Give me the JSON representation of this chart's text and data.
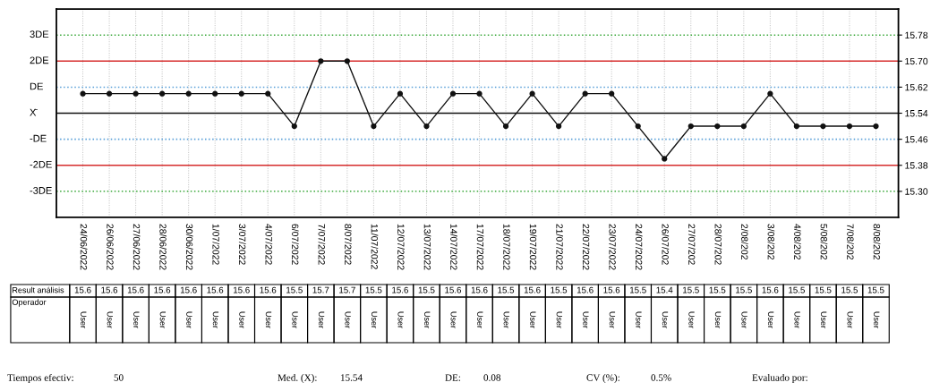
{
  "chart_data": {
    "type": "line",
    "categories": [
      "24/06/2022",
      "26/06/2022",
      "27/06/2022",
      "28/06/2022",
      "30/06/2022",
      "1/07/2022",
      "3/07/2022",
      "4/07/2022",
      "6/07/2022",
      "7/07/2022",
      "8/07/2022",
      "11/07/2022",
      "12/07/2022",
      "13/07/2022",
      "14/07/2022",
      "17/07/2022",
      "18/07/2022",
      "19/07/2022",
      "21/07/2022",
      "22/07/2022",
      "23/07/2022",
      "24/07/2022",
      "26/07/202",
      "27/07/202",
      "28/07/202",
      "2/08/202",
      "3/08/202",
      "4/08/202",
      "5/08/202",
      "7/08/202",
      "8/08/202"
    ],
    "series": [
      {
        "color": "#111111",
        "values": [
          15.6,
          15.6,
          15.6,
          15.6,
          15.6,
          15.6,
          15.6,
          15.6,
          15.5,
          15.7,
          15.7,
          15.5,
          15.6,
          15.5,
          15.6,
          15.6,
          15.5,
          15.6,
          15.5,
          15.6,
          15.6,
          15.5,
          15.4,
          15.5,
          15.5,
          15.5,
          15.6,
          15.5,
          15.5,
          15.5,
          15.5
        ]
      }
    ],
    "marker": "circle",
    "line_style": "solid",
    "data_labels": true,
    "grid": "x",
    "ylim": [
      15.22,
      15.86
    ],
    "yticks": [
      {
        "value": 15.78,
        "label": "15.78"
      },
      {
        "value": 15.7,
        "label": "15.70"
      },
      {
        "value": 15.62,
        "label": "15.62"
      },
      {
        "value": 15.54,
        "label": "15.54"
      },
      {
        "value": 15.46,
        "label": "15.46"
      },
      {
        "value": 15.38,
        "label": "15.38"
      },
      {
        "value": 15.3,
        "label": "15.30"
      }
    ],
    "ref_lines": [
      {
        "axis": "y",
        "value": 15.78,
        "label": "3DE",
        "color": "#3aa83a",
        "line_style": "dotted"
      },
      {
        "axis": "y",
        "value": 15.7,
        "label": "2DE",
        "color": "#d62c2c",
        "line_style": "solid"
      },
      {
        "axis": "y",
        "value": 15.62,
        "label": "DE",
        "color": "#5aa0d8",
        "line_style": "dotted"
      },
      {
        "axis": "y",
        "value": 15.54,
        "label": "X̄",
        "color": "#111111",
        "line_style": "solid"
      },
      {
        "axis": "y",
        "value": 15.46,
        "label": "-DE",
        "color": "#5aa0d8",
        "line_style": "dotted"
      },
      {
        "axis": "y",
        "value": 15.38,
        "label": "-2DE",
        "color": "#d62c2c",
        "line_style": "solid"
      },
      {
        "axis": "y",
        "value": 15.3,
        "label": "-3DE",
        "color": "#3aa83a",
        "line_style": "dotted"
      }
    ],
    "annotations": [
      "Result análisis",
      "Operador",
      "User",
      "User",
      "User",
      "User",
      "User",
      "User",
      "User",
      "User",
      "User",
      "User",
      "User",
      "User",
      "User",
      "User",
      "User",
      "User",
      "User",
      "User",
      "User",
      "User",
      "User",
      "User",
      "User",
      "User",
      "User",
      "User",
      "User",
      "User",
      "User",
      "User",
      "User",
      "Tiempos efectiv:",
      "50",
      "Med. (X):",
      "15.54",
      "DE:",
      "0.08",
      "CV (%):",
      "0.5%",
      "Evaluado por:"
    ]
  }
}
